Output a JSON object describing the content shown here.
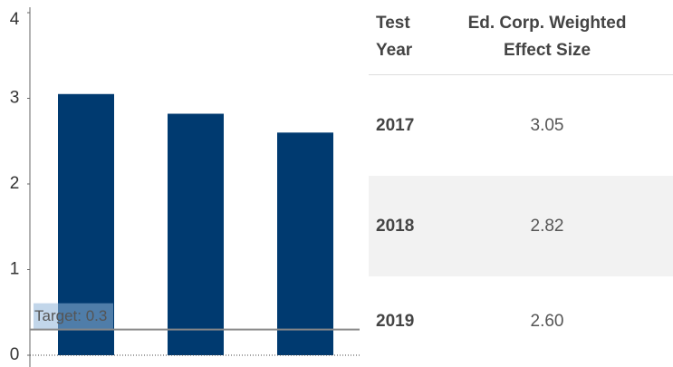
{
  "chart_data": {
    "type": "bar",
    "values": [
      3.05,
      2.82,
      2.6
    ],
    "value_labels": [
      "3.05",
      "2.82",
      "2.60"
    ],
    "color": "#003a70",
    "ylim": [
      0,
      4
    ],
    "yticks": [
      0,
      1,
      2,
      3,
      4
    ],
    "target": {
      "value": 0.3,
      "label": "Target: 0.3"
    }
  },
  "table": {
    "headers": [
      "Test Year",
      "Ed. Corp. Weighted Effect Size"
    ],
    "years": [
      "2017",
      "2018",
      "2019"
    ]
  }
}
